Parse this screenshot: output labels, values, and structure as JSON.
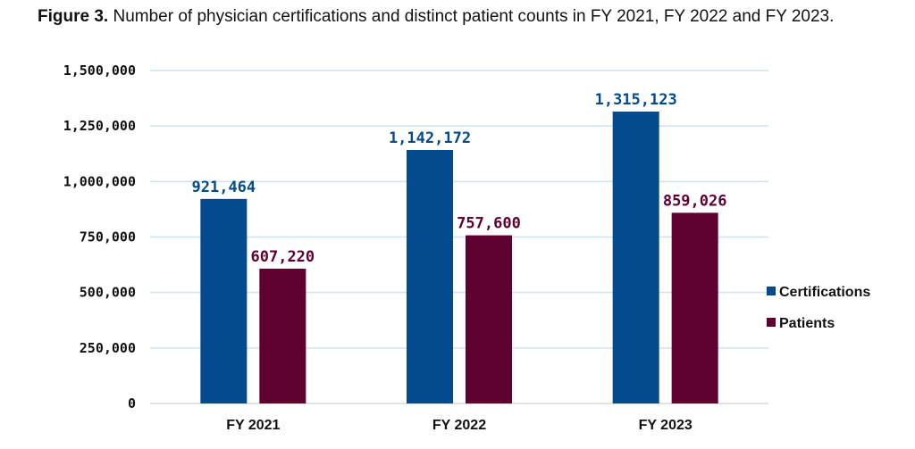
{
  "figure": {
    "label": "Figure 3.",
    "caption": " Number of physician certifications and distinct patient counts in FY 2021, FY 2022 and FY 2023."
  },
  "chart_data": {
    "type": "bar",
    "title": "Figure 3. Number of physician certifications and distinct patient counts in FY 2021, FY 2022 and FY 2023.",
    "xlabel": "",
    "ylabel": "",
    "categories": [
      "FY 2021",
      "FY 2022",
      "FY 2023"
    ],
    "series": [
      {
        "name": "Certifications",
        "color": "#034a8f",
        "values": [
          921464,
          1142172,
          1315123
        ],
        "labels": [
          "921,464",
          "1,142,172",
          "1,315,123"
        ]
      },
      {
        "name": "Patients",
        "color": "#5e0030",
        "values": [
          607220,
          757600,
          859026
        ],
        "labels": [
          "607,220",
          "757,600",
          "859,026"
        ]
      }
    ],
    "ylim": [
      0,
      1500000
    ],
    "yticks": [
      0,
      250000,
      500000,
      750000,
      1000000,
      1250000,
      1500000
    ],
    "ytick_labels": [
      "0",
      "250,000",
      "500,000",
      "750,000",
      "1,000,000",
      "1,250,000",
      "1,500,000"
    ],
    "grid": true,
    "grid_color": "#cfe2f3",
    "legend_position": "right"
  }
}
